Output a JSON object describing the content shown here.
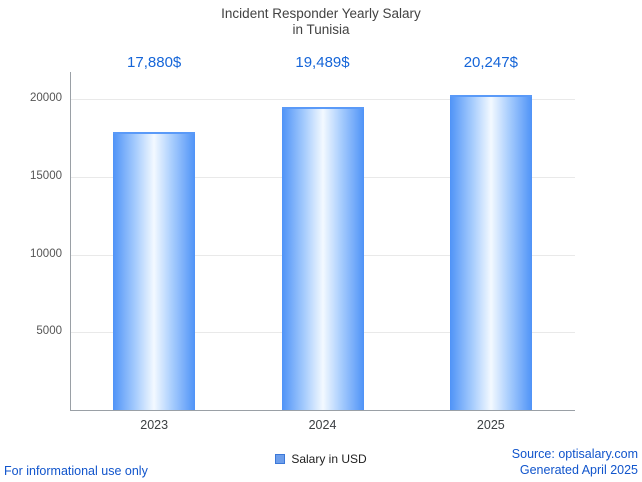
{
  "title": {
    "line1": "Incident Responder Yearly Salary",
    "line2": "in Tunisia"
  },
  "legend": {
    "label": "Salary in USD"
  },
  "footer": {
    "disclaimer": "For informational use only",
    "source": "Source: optisalary.com",
    "generated": "Generated April 2025"
  },
  "colors": {
    "value_label": "#1565d8",
    "bar_edge": "#4f93f7",
    "bar_center": "#f3f9ff",
    "link_blue": "#1155cc",
    "axis": "#9aa0a6",
    "grid": "#e9e9e9",
    "title_text": "#424242"
  },
  "chart_data": {
    "type": "bar",
    "title": "Incident Responder Yearly Salary in Tunisia",
    "categories": [
      "2023",
      "2024",
      "2025"
    ],
    "values": [
      17880,
      19489,
      20247
    ],
    "value_labels": [
      "17,880$",
      "19,489$",
      "20,247$"
    ],
    "xlabel": "",
    "ylabel": "",
    "ylim": [
      0,
      20900
    ],
    "yticks": [
      5000,
      10000,
      15000,
      20000
    ],
    "grid": true,
    "legend_entries": [
      "Salary in USD"
    ],
    "legend_position": "bottom"
  }
}
